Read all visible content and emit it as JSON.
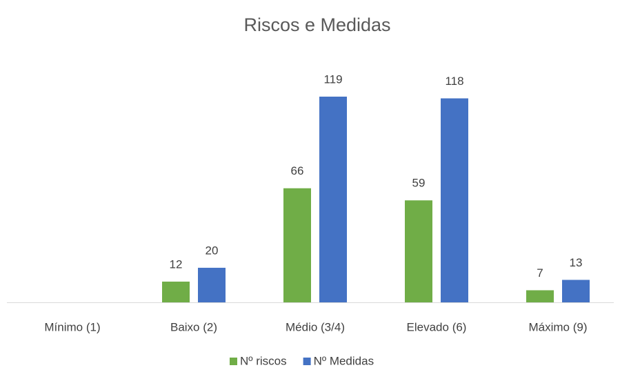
{
  "chart_data": {
    "type": "bar",
    "title": "Riscos e Medidas",
    "categories": [
      "Mínimo (1)",
      "Baixo (2)",
      "Médio (3/4)",
      "Elevado (6)",
      "Máximo (9)"
    ],
    "series": [
      {
        "name": "Nº riscos",
        "color": "#70ad47",
        "values": [
          null,
          12,
          66,
          59,
          7
        ]
      },
      {
        "name": "Nº Medidas",
        "color": "#4472c4",
        "values": [
          null,
          20,
          119,
          118,
          13
        ]
      }
    ],
    "ylim": [
      0,
      140
    ],
    "legend": "bottom"
  }
}
